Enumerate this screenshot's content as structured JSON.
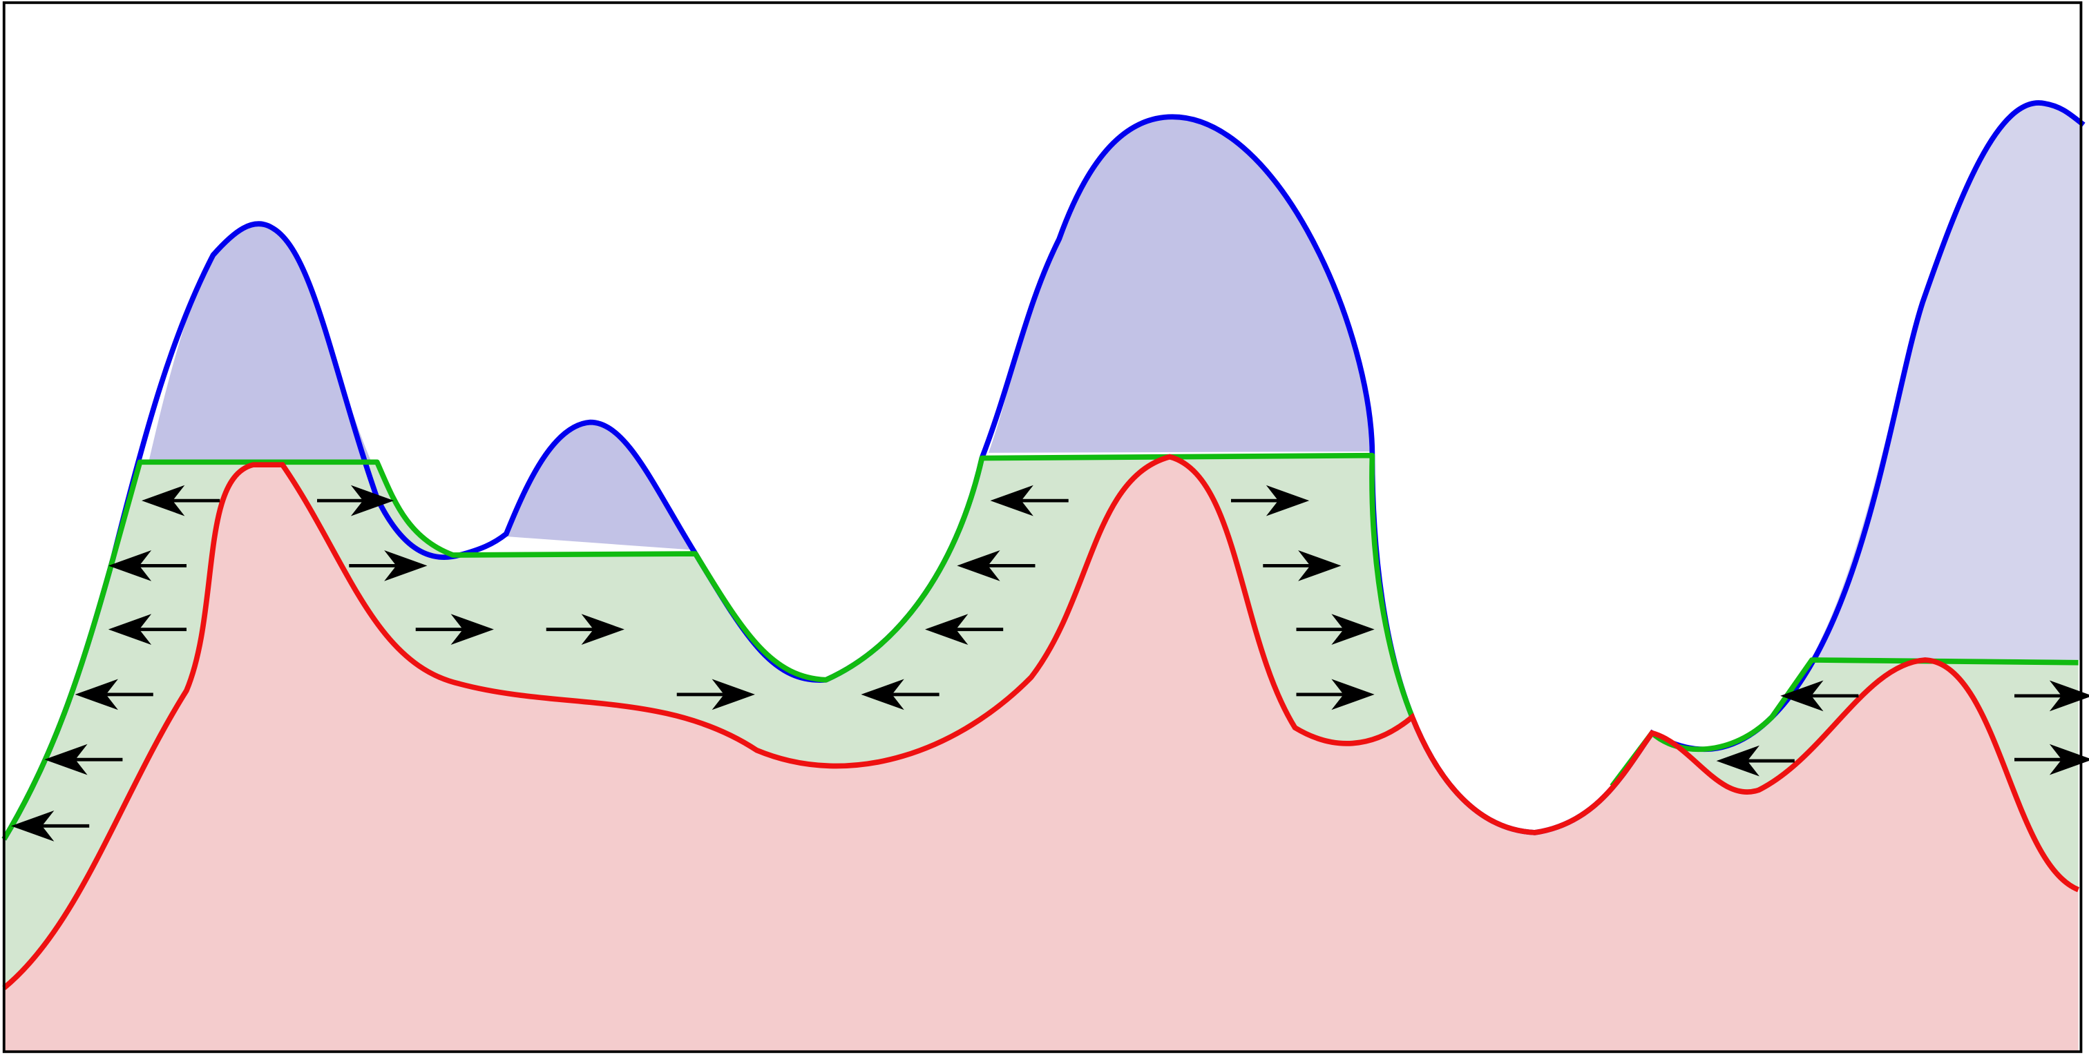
{
  "diagram": {
    "colors": {
      "frame": "#000000",
      "background": "#ffffff",
      "upper_curve": "#0000ee",
      "upper_fill": "#c2c2e6",
      "upper_fill_right": "#d4d4ec",
      "water_level": "#11bb11",
      "water_fill": "#d3e6d0",
      "lower_curve": "#ee1111",
      "lower_fill": "#f4cccd",
      "arrow": "#000000"
    },
    "arrows": [
      {
        "dir": "left",
        "count": 1
      },
      {
        "dir": "right",
        "count": 1
      },
      {
        "dir": "left",
        "count": 1
      },
      {
        "dir": "right",
        "count": 1
      },
      {
        "dir": "left",
        "count": 1
      },
      {
        "dir": "right",
        "count": 2
      },
      {
        "dir": "left",
        "count": 1
      },
      {
        "dir": "right",
        "count": 1
      },
      {
        "dir": "left",
        "count": 1
      },
      {
        "dir": "left",
        "count": 1
      },
      {
        "dir": "left",
        "count": 1
      },
      {
        "dir": "left",
        "count": 1
      },
      {
        "dir": "left",
        "count": 1
      },
      {
        "dir": "right",
        "count": 1
      },
      {
        "dir": "right",
        "count": 1
      },
      {
        "dir": "right",
        "count": 1
      },
      {
        "dir": "right",
        "count": 1
      },
      {
        "dir": "left",
        "count": 1
      },
      {
        "dir": "left",
        "count": 1
      },
      {
        "dir": "right",
        "count": 1
      },
      {
        "dir": "right",
        "count": 1
      }
    ]
  }
}
